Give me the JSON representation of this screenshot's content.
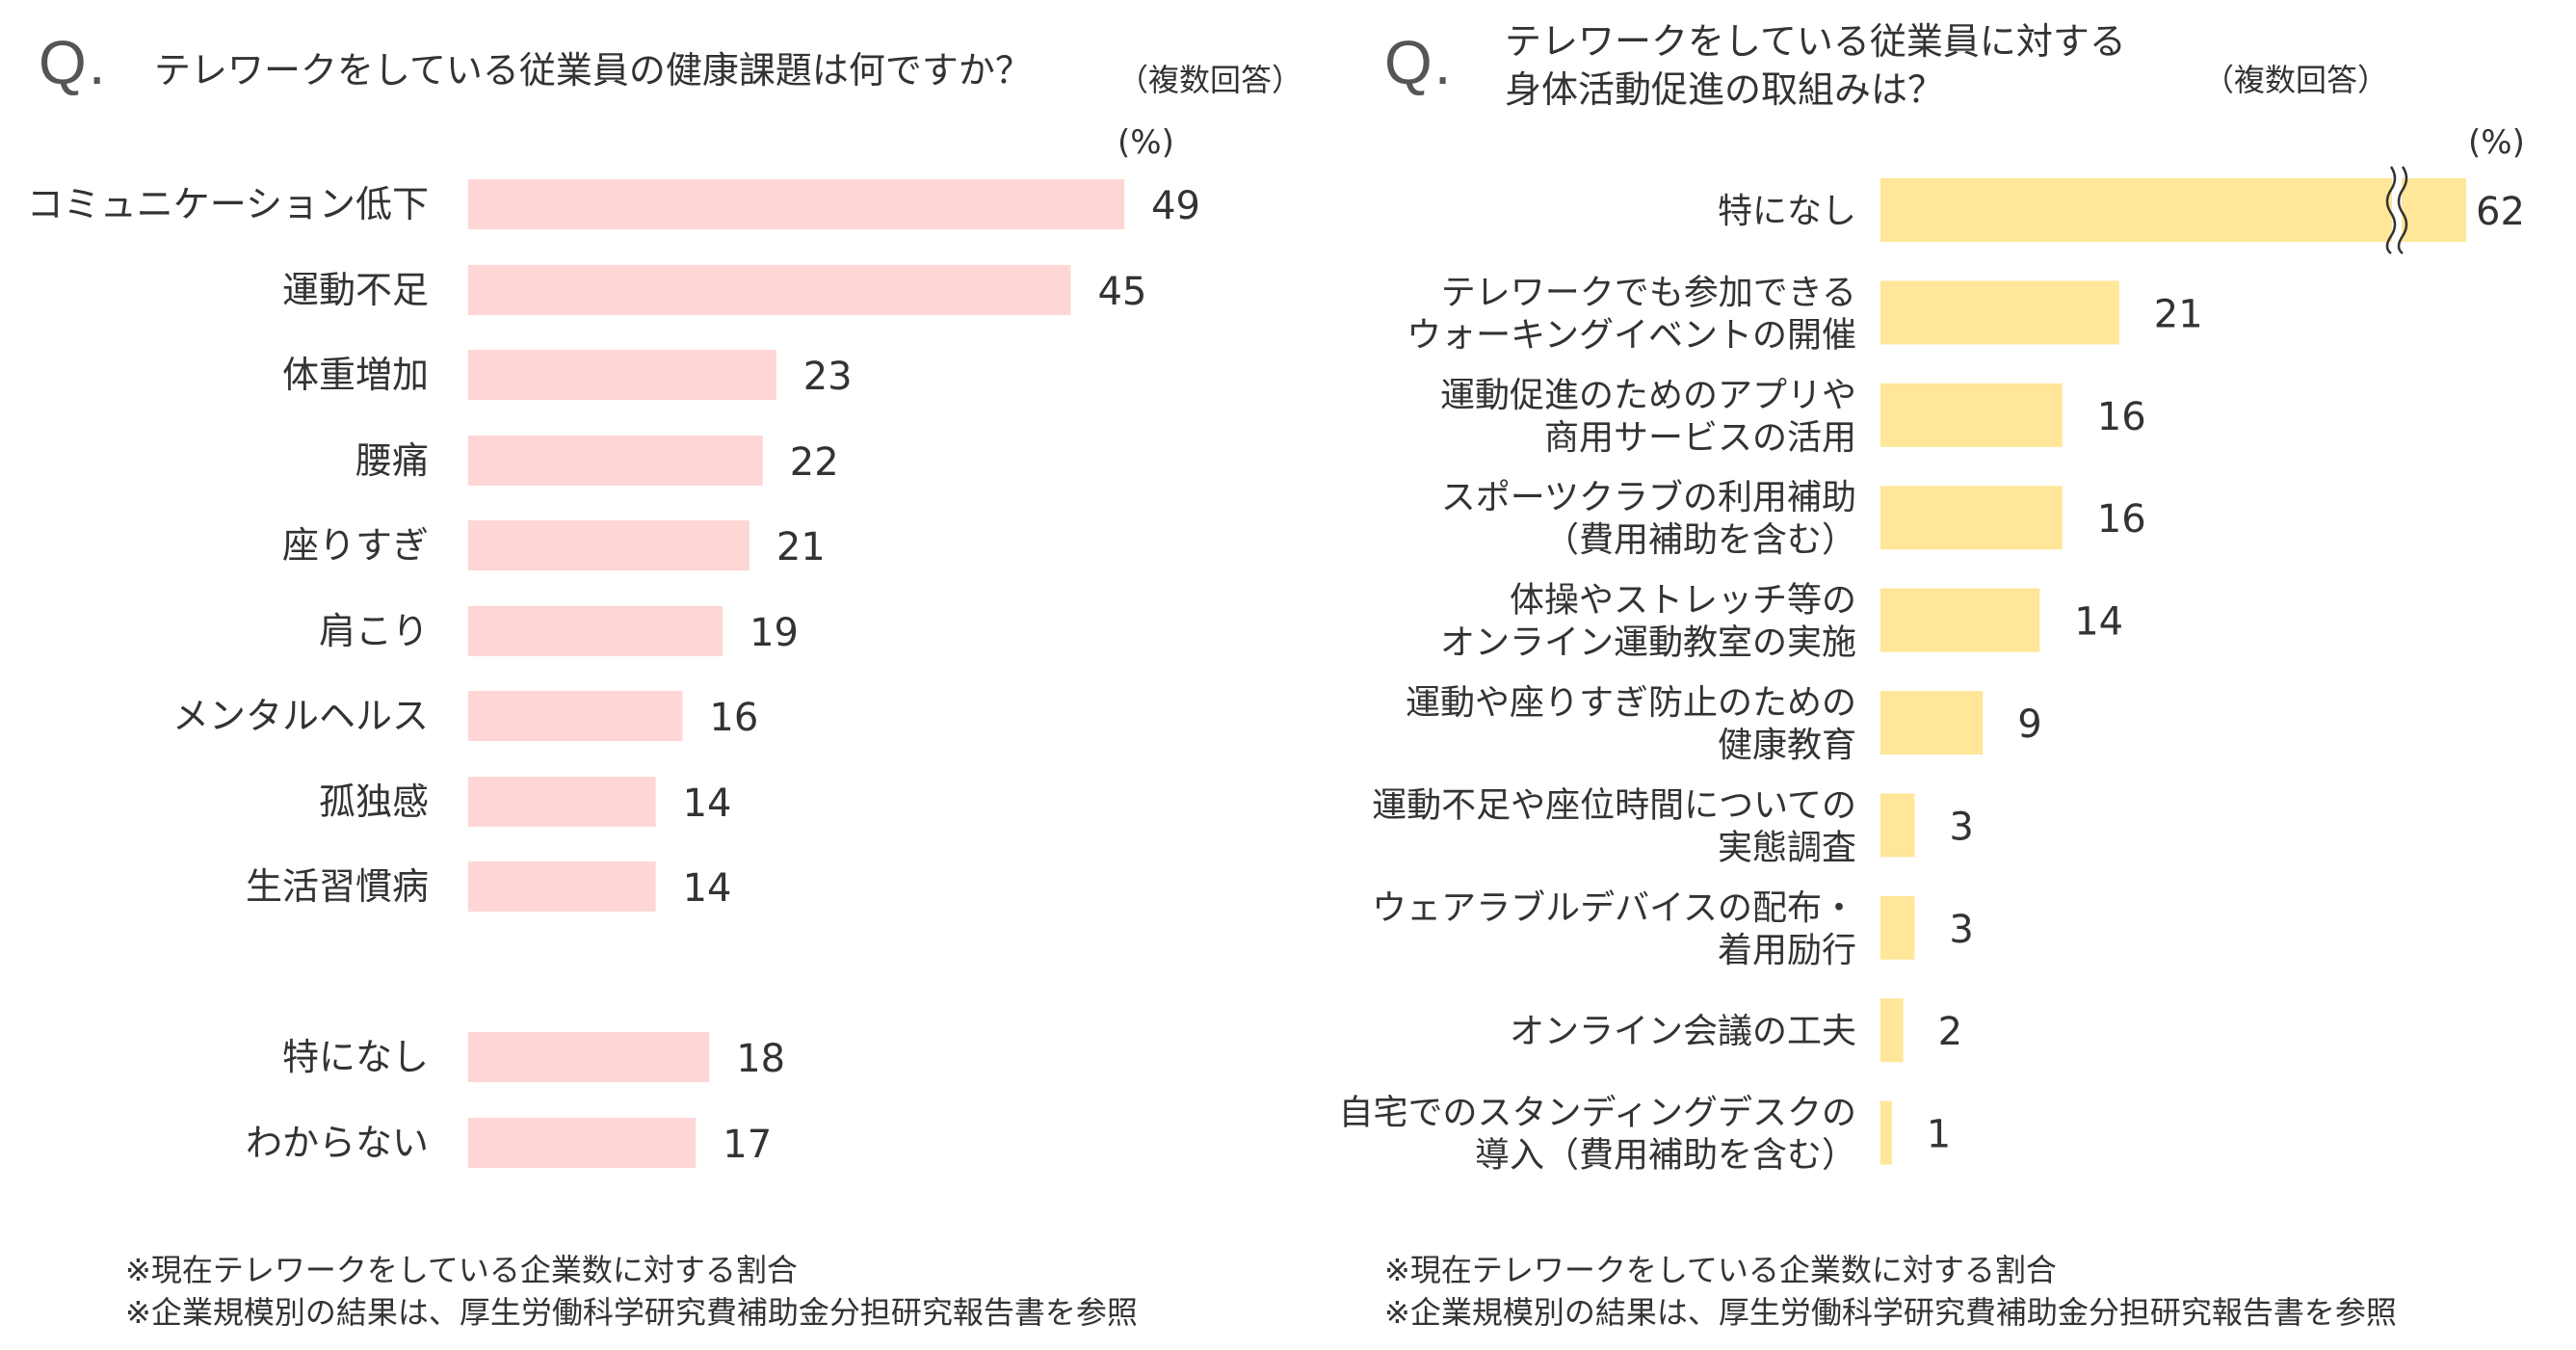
{
  "left": {
    "q_mark": "Q.",
    "question": "テレワークをしている従業員の健康課題は何ですか？",
    "note": "（複数回答）",
    "unit": "(%)",
    "footnotes": [
      "※現在テレワークをしている企業数に対する割合",
      "※企業規模別の結果は、厚生労働科学研究費補助金分担研究報告書を参照"
    ]
  },
  "right": {
    "q_mark": "Q.",
    "question": "テレワークをしている従業員に対する\n身体活動促進の取組みは？",
    "note": "（複数回答）",
    "unit": "(%)",
    "footnotes": [
      "※現在テレワークをしている企業数に対する割合",
      "※企業規模別の結果は、厚生労働科学研究費補助金分担研究報告書を参照"
    ]
  },
  "colors": {
    "left_bar": "#FFD6D6",
    "right_bar": "#FFE699",
    "text": "#333333"
  },
  "chart_data": [
    {
      "type": "bar",
      "orientation": "horizontal",
      "title": "テレワークをしている従業員の健康課題は何ですか？",
      "unit": "%",
      "categories": [
        "コミュニケーション低下",
        "運動不足",
        "体重増加",
        "腰痛",
        "座りすぎ",
        "肩こり",
        "メンタルヘルス",
        "孤独感",
        "生活習慣病",
        "特になし",
        "わからない"
      ],
      "values": [
        49,
        45,
        23,
        22,
        21,
        19,
        16,
        14,
        14,
        18,
        17
      ],
      "value_labels": [
        "49",
        "45",
        "23",
        "22",
        "21",
        "19",
        "16",
        "14",
        "14",
        "18",
        "17"
      ],
      "grid": false,
      "legend": "none"
    },
    {
      "type": "bar",
      "orientation": "horizontal",
      "title": "テレワークをしている従業員に対する身体活動促進の取組みは？",
      "unit": "%",
      "categories": [
        "特になし",
        "テレワークでも参加できる\nウォーキングイベントの開催",
        "運動促進のためのアプリや\n商用サービスの活用",
        "スポーツクラブの利用補助\n（費用補助を含む）",
        "体操やストレッチ等の\nオンライン運動教室の実施",
        "運動や座りすぎ防止のための\n健康教育",
        "運動不足や座位時間についての\n実態調査",
        "ウェアラブルデバイスの配布・\n着用励行",
        "オンライン会議の工夫",
        "自宅でのスタンディングデスクの\n導入（費用補助を含む）"
      ],
      "values": [
        62,
        21,
        16,
        16,
        14,
        9,
        3,
        3,
        2,
        1
      ],
      "value_labels": [
        "62",
        "21",
        "16",
        "16",
        "14",
        "9",
        "3",
        "3",
        "2",
        "1"
      ],
      "axis_break": "first bar truncated (broken axis)",
      "grid": false,
      "legend": "none"
    }
  ]
}
